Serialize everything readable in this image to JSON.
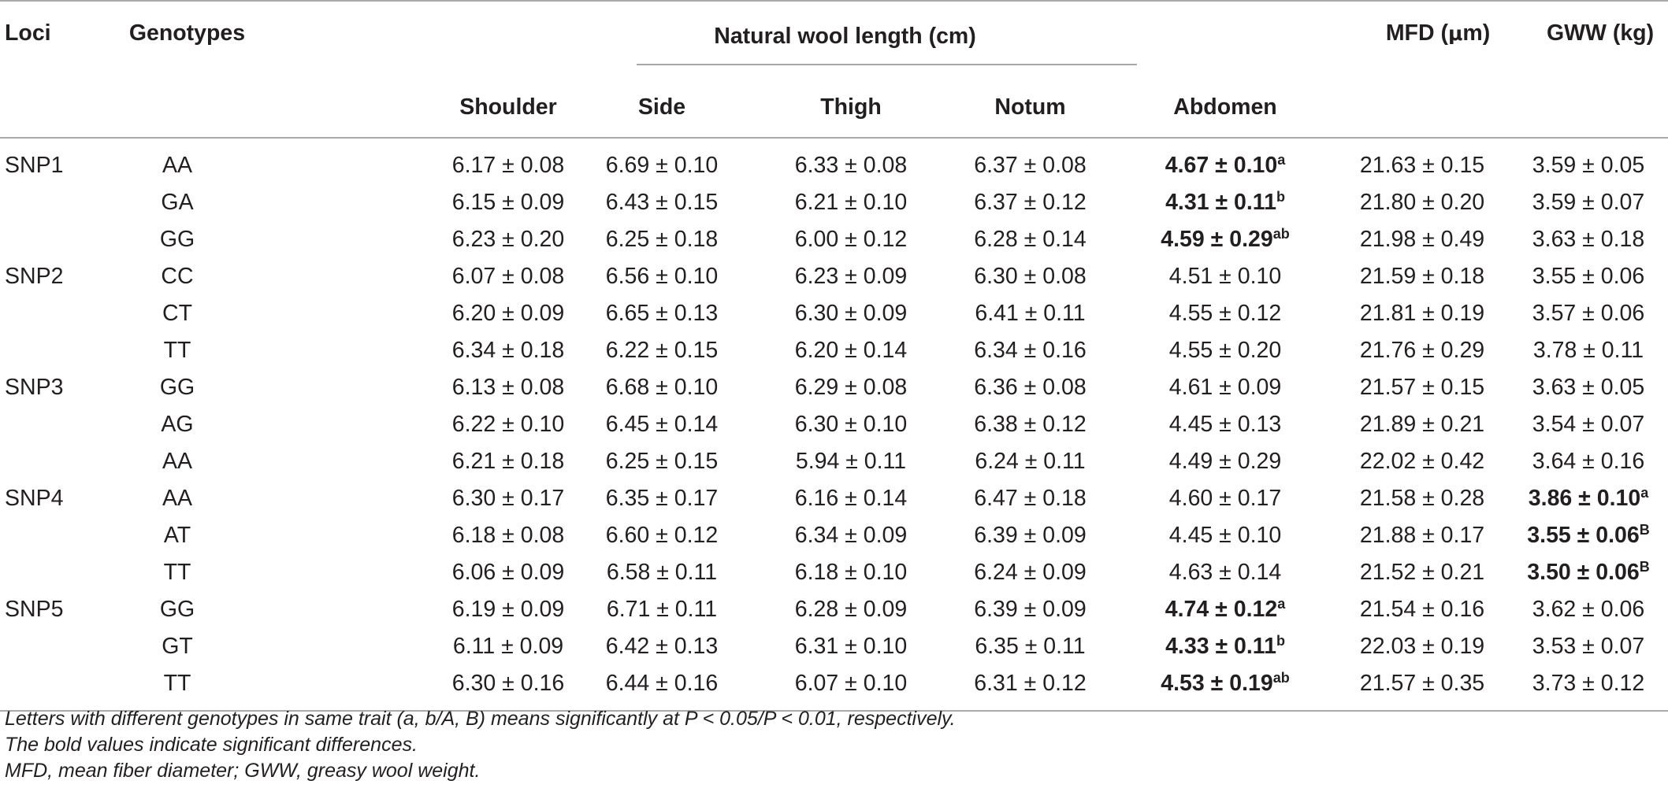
{
  "headers": {
    "loci": "Loci",
    "genotypes": "Genotypes",
    "natural_wool_length": "Natural wool length (cm)",
    "mfd_pre": "MFD (",
    "mfd_unit": "μ",
    "mfd_post": "m)",
    "gww": "GWW (kg)",
    "shoulder": "Shoulder",
    "side": "Side",
    "thigh": "Thigh",
    "notum": "Notum",
    "abdomen": "Abdomen"
  },
  "rows": [
    {
      "locus": "SNP1",
      "genotype": "AA",
      "shoulder": "6.17 ± 0.08",
      "side": "6.69 ± 0.10",
      "thigh": "6.33 ± 0.08",
      "notum": "6.37 ± 0.08",
      "abdomen": "4.67 ± 0.10",
      "abdomen_sup": "a",
      "abdomen_bold": true,
      "mfd": "21.63 ± 0.15",
      "gww": "3.59 ± 0.05",
      "gww_sup": "",
      "gww_bold": false
    },
    {
      "locus": "",
      "genotype": "GA",
      "shoulder": "6.15 ± 0.09",
      "side": "6.43 ± 0.15",
      "thigh": "6.21 ± 0.10",
      "notum": "6.37 ± 0.12",
      "abdomen": "4.31 ± 0.11",
      "abdomen_sup": "b",
      "abdomen_bold": true,
      "mfd": "21.80 ± 0.20",
      "gww": "3.59 ± 0.07",
      "gww_sup": "",
      "gww_bold": false
    },
    {
      "locus": "",
      "genotype": "GG",
      "shoulder": "6.23 ± 0.20",
      "side": "6.25 ± 0.18",
      "thigh": "6.00 ± 0.12",
      "notum": "6.28 ± 0.14",
      "abdomen": "4.59 ± 0.29",
      "abdomen_sup": "ab",
      "abdomen_bold": true,
      "mfd": "21.98 ± 0.49",
      "gww": "3.63 ± 0.18",
      "gww_sup": "",
      "gww_bold": false
    },
    {
      "locus": "SNP2",
      "genotype": "CC",
      "shoulder": "6.07 ± 0.08",
      "side": "6.56 ± 0.10",
      "thigh": "6.23 ± 0.09",
      "notum": "6.30 ± 0.08",
      "abdomen": "4.51 ± 0.10",
      "abdomen_sup": "",
      "abdomen_bold": false,
      "mfd": "21.59 ± 0.18",
      "gww": "3.55 ± 0.06",
      "gww_sup": "",
      "gww_bold": false
    },
    {
      "locus": "",
      "genotype": "CT",
      "shoulder": "6.20 ± 0.09",
      "side": "6.65 ± 0.13",
      "thigh": "6.30 ± 0.09",
      "notum": "6.41 ± 0.11",
      "abdomen": "4.55 ± 0.12",
      "abdomen_sup": "",
      "abdomen_bold": false,
      "mfd": "21.81 ± 0.19",
      "gww": "3.57 ± 0.06",
      "gww_sup": "",
      "gww_bold": false
    },
    {
      "locus": "",
      "genotype": "TT",
      "shoulder": "6.34 ± 0.18",
      "side": "6.22 ± 0.15",
      "thigh": "6.20 ± 0.14",
      "notum": "6.34 ± 0.16",
      "abdomen": "4.55 ± 0.20",
      "abdomen_sup": "",
      "abdomen_bold": false,
      "mfd": "21.76 ± 0.29",
      "gww": "3.78 ± 0.11",
      "gww_sup": "",
      "gww_bold": false
    },
    {
      "locus": "SNP3",
      "genotype": "GG",
      "shoulder": "6.13 ± 0.08",
      "side": "6.68 ± 0.10",
      "thigh": "6.29 ± 0.08",
      "notum": "6.36 ± 0.08",
      "abdomen": "4.61 ± 0.09",
      "abdomen_sup": "",
      "abdomen_bold": false,
      "mfd": "21.57 ± 0.15",
      "gww": "3.63 ± 0.05",
      "gww_sup": "",
      "gww_bold": false
    },
    {
      "locus": "",
      "genotype": "AG",
      "shoulder": "6.22 ± 0.10",
      "side": "6.45 ± 0.14",
      "thigh": "6.30 ± 0.10",
      "notum": "6.38 ± 0.12",
      "abdomen": "4.45 ± 0.13",
      "abdomen_sup": "",
      "abdomen_bold": false,
      "mfd": "21.89 ± 0.21",
      "gww": "3.54 ± 0.07",
      "gww_sup": "",
      "gww_bold": false
    },
    {
      "locus": "",
      "genotype": "AA",
      "shoulder": "6.21 ± 0.18",
      "side": "6.25 ± 0.15",
      "thigh": "5.94 ± 0.11",
      "notum": "6.24 ± 0.11",
      "abdomen": "4.49 ± 0.29",
      "abdomen_sup": "",
      "abdomen_bold": false,
      "mfd": "22.02 ± 0.42",
      "gww": "3.64 ± 0.16",
      "gww_sup": "",
      "gww_bold": false
    },
    {
      "locus": "SNP4",
      "genotype": "AA",
      "shoulder": "6.30 ± 0.17",
      "side": "6.35 ± 0.17",
      "thigh": "6.16 ± 0.14",
      "notum": "6.47 ± 0.18",
      "abdomen": "4.60 ± 0.17",
      "abdomen_sup": "",
      "abdomen_bold": false,
      "mfd": "21.58 ± 0.28",
      "gww": "3.86 ± 0.10",
      "gww_sup": "a",
      "gww_bold": true
    },
    {
      "locus": "",
      "genotype": "AT",
      "shoulder": "6.18 ± 0.08",
      "side": "6.60 ± 0.12",
      "thigh": "6.34 ± 0.09",
      "notum": "6.39 ± 0.09",
      "abdomen": "4.45 ± 0.10",
      "abdomen_sup": "",
      "abdomen_bold": false,
      "mfd": "21.88 ± 0.17",
      "gww": "3.55 ± 0.06",
      "gww_sup": "B",
      "gww_bold": true
    },
    {
      "locus": "",
      "genotype": "TT",
      "shoulder": "6.06 ± 0.09",
      "side": "6.58 ± 0.11",
      "thigh": "6.18 ± 0.10",
      "notum": "6.24 ± 0.09",
      "abdomen": "4.63 ± 0.14",
      "abdomen_sup": "",
      "abdomen_bold": false,
      "mfd": "21.52 ± 0.21",
      "gww": "3.50 ± 0.06",
      "gww_sup": "B",
      "gww_bold": true
    },
    {
      "locus": "SNP5",
      "genotype": "GG",
      "shoulder": "6.19 ± 0.09",
      "side": "6.71 ± 0.11",
      "thigh": "6.28 ± 0.09",
      "notum": "6.39 ± 0.09",
      "abdomen": "4.74 ± 0.12",
      "abdomen_sup": "a",
      "abdomen_bold": true,
      "mfd": "21.54 ± 0.16",
      "gww": "3.62 ± 0.06",
      "gww_sup": "",
      "gww_bold": false
    },
    {
      "locus": "",
      "genotype": "GT",
      "shoulder": "6.11 ± 0.09",
      "side": "6.42 ± 0.13",
      "thigh": "6.31 ± 0.10",
      "notum": "6.35 ± 0.11",
      "abdomen": "4.33 ± 0.11",
      "abdomen_sup": "b",
      "abdomen_bold": true,
      "mfd": "22.03 ± 0.19",
      "gww": "3.53 ± 0.07",
      "gww_sup": "",
      "gww_bold": false
    },
    {
      "locus": "",
      "genotype": "TT",
      "shoulder": "6.30 ± 0.16",
      "side": "6.44 ± 0.16",
      "thigh": "6.07 ± 0.10",
      "notum": "6.31 ± 0.12",
      "abdomen": "4.53 ± 0.19",
      "abdomen_sup": "ab",
      "abdomen_bold": true,
      "mfd": "21.57 ± 0.35",
      "gww": "3.73 ± 0.12",
      "gww_sup": "",
      "gww_bold": false
    }
  ],
  "footnotes": [
    "Letters with different genotypes in same trait (a, b/A, B) means significantly at P < 0.05/P < 0.01, respectively.",
    "The bold values indicate significant differences.",
    "MFD, mean fiber diameter; GWW, greasy wool weight."
  ]
}
